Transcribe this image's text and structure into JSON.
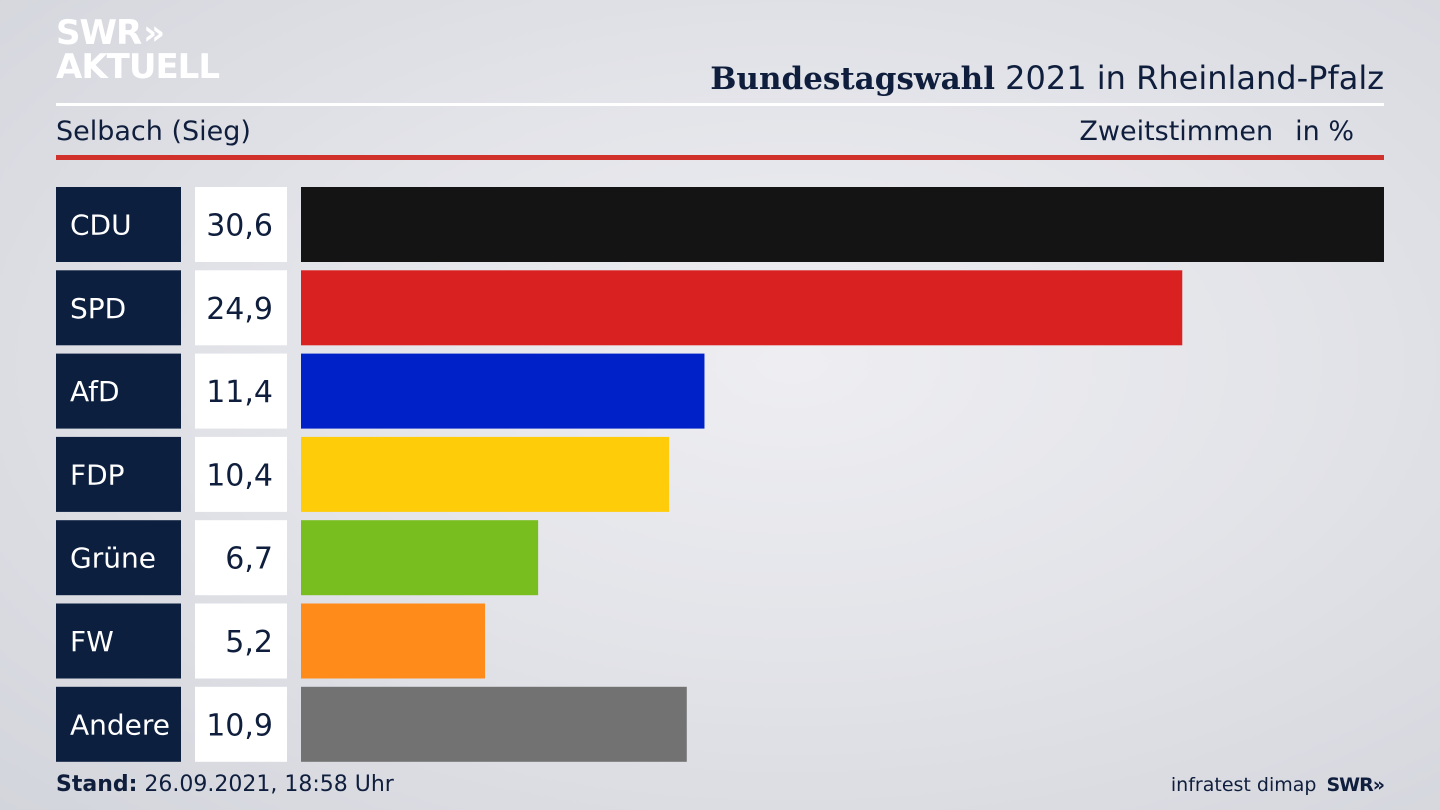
{
  "logo": {
    "line1": "SWR",
    "chevrons": "»",
    "line2": "AKTUELL"
  },
  "header": {
    "title_bold": "Bundestagswahl",
    "title_rest": "2021 in Rheinland-Pfalz",
    "subtitle": "Selbach (Sieg)",
    "measure": "Zweitstimmen",
    "unit": "in %"
  },
  "footer": {
    "stand_label": "Stand:",
    "stand_value": "26.09.2021, 18:58 Uhr",
    "source": "infratest dimap",
    "brand": "SWR»"
  },
  "chart_data": {
    "type": "bar",
    "orientation": "horizontal",
    "categories": [
      "CDU",
      "SPD",
      "AfD",
      "FDP",
      "Grüne",
      "FW",
      "Andere"
    ],
    "values": [
      30.6,
      24.9,
      11.4,
      10.4,
      6.7,
      5.2,
      10.9
    ],
    "value_labels": [
      "30,6",
      "24,9",
      "11,4",
      "10,4",
      "6,7",
      "5,2",
      "10,9"
    ],
    "colors": [
      "#141414",
      "#d92121",
      "#0021c8",
      "#ffcc0a",
      "#78be1e",
      "#ff8c1a",
      "#727272"
    ],
    "title": "Bundestagswahl 2021 in Rheinland-Pfalz",
    "subtitle": "Selbach (Sieg)",
    "unit": "in %",
    "grid": false,
    "legend": "none"
  }
}
